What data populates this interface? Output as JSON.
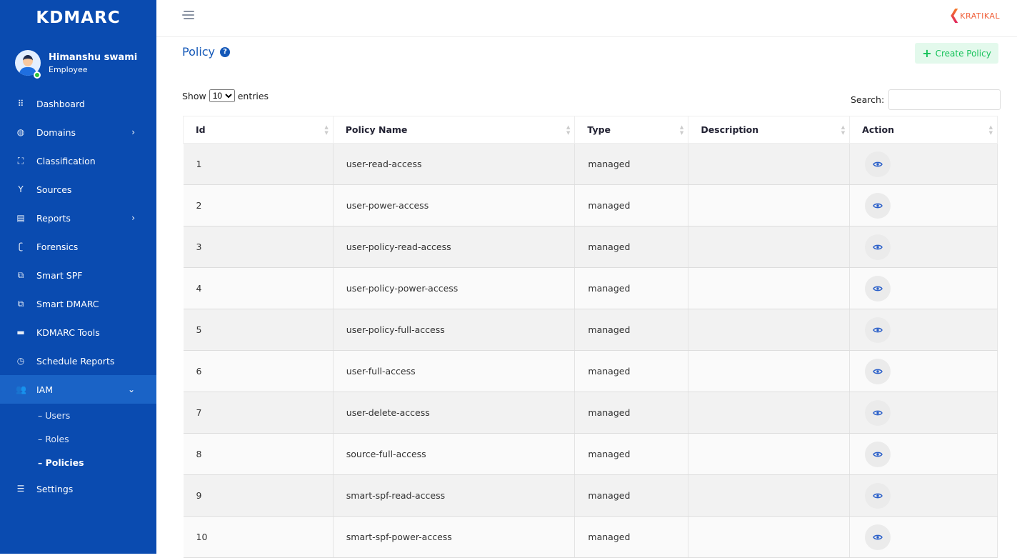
{
  "brand": {
    "logo": "KDMARC",
    "partner": "KRATIKAL"
  },
  "user": {
    "name": "Himanshu swami",
    "role": "Employee"
  },
  "sidebar": {
    "items": [
      {
        "label": "Dashboard",
        "icon": "grid-icon"
      },
      {
        "label": "Domains",
        "icon": "globe-icon",
        "chevron": true
      },
      {
        "label": "Classification",
        "icon": "hierarchy-icon"
      },
      {
        "label": "Sources",
        "icon": "fork-icon"
      },
      {
        "label": "Reports",
        "icon": "report-icon",
        "chevron": true
      },
      {
        "label": "Forensics",
        "icon": "fingerprint-icon"
      },
      {
        "label": "Smart SPF",
        "icon": "copy-icon"
      },
      {
        "label": "Smart DMARC",
        "icon": "copy-icon"
      },
      {
        "label": "KDMARC Tools",
        "icon": "toolbox-icon"
      },
      {
        "label": "Schedule Reports",
        "icon": "clock-icon"
      },
      {
        "label": "IAM",
        "icon": "users-icon",
        "active": true,
        "expanded": true
      },
      {
        "label": "Settings",
        "icon": "sliders-icon"
      }
    ],
    "iam_sub": [
      "– Users",
      "– Roles",
      "– Policies"
    ],
    "current_sub": "– Policies"
  },
  "page": {
    "title": "Policy",
    "create_label": "Create Policy"
  },
  "table_controls": {
    "show": "Show",
    "entries": "entries",
    "page_size": "10",
    "search_label": "Search:",
    "search_value": ""
  },
  "table": {
    "columns": [
      "Id",
      "Policy Name",
      "Type",
      "Description",
      "Action"
    ],
    "rows": [
      [
        "1",
        "user-read-access",
        "managed",
        ""
      ],
      [
        "2",
        "user-power-access",
        "managed",
        ""
      ],
      [
        "3",
        "user-policy-read-access",
        "managed",
        ""
      ],
      [
        "4",
        "user-policy-power-access",
        "managed",
        ""
      ],
      [
        "5",
        "user-policy-full-access",
        "managed",
        ""
      ],
      [
        "6",
        "user-full-access",
        "managed",
        ""
      ],
      [
        "7",
        "user-delete-access",
        "managed",
        ""
      ],
      [
        "8",
        "source-full-access",
        "managed",
        ""
      ],
      [
        "9",
        "smart-spf-read-access",
        "managed",
        ""
      ],
      [
        "10",
        "smart-spf-power-access",
        "managed",
        ""
      ]
    ]
  },
  "colors": {
    "sidebar": "#0a4bb0",
    "active": "#1a63c6",
    "accent": "#1458b8",
    "create": "#16c25a"
  }
}
